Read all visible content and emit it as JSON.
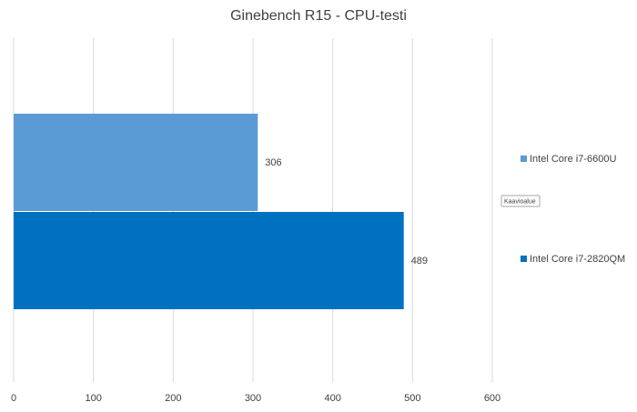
{
  "chart_data": {
    "type": "bar",
    "orientation": "horizontal",
    "title": "Ginebench R15 - CPU-testi",
    "categories": [
      null
    ],
    "series": [
      {
        "name": "Intel Core i7-6600U",
        "color": "#5b9bd5",
        "values": [
          306
        ]
      },
      {
        "name": "Intel Core i7-2820QM",
        "color": "#0070c0",
        "values": [
          489
        ]
      }
    ],
    "xlim": [
      0,
      600
    ],
    "xticks": [
      0,
      100,
      200,
      300,
      400,
      500,
      600
    ],
    "grid": true,
    "legend": "right",
    "annotation": "Kaavioalue"
  }
}
